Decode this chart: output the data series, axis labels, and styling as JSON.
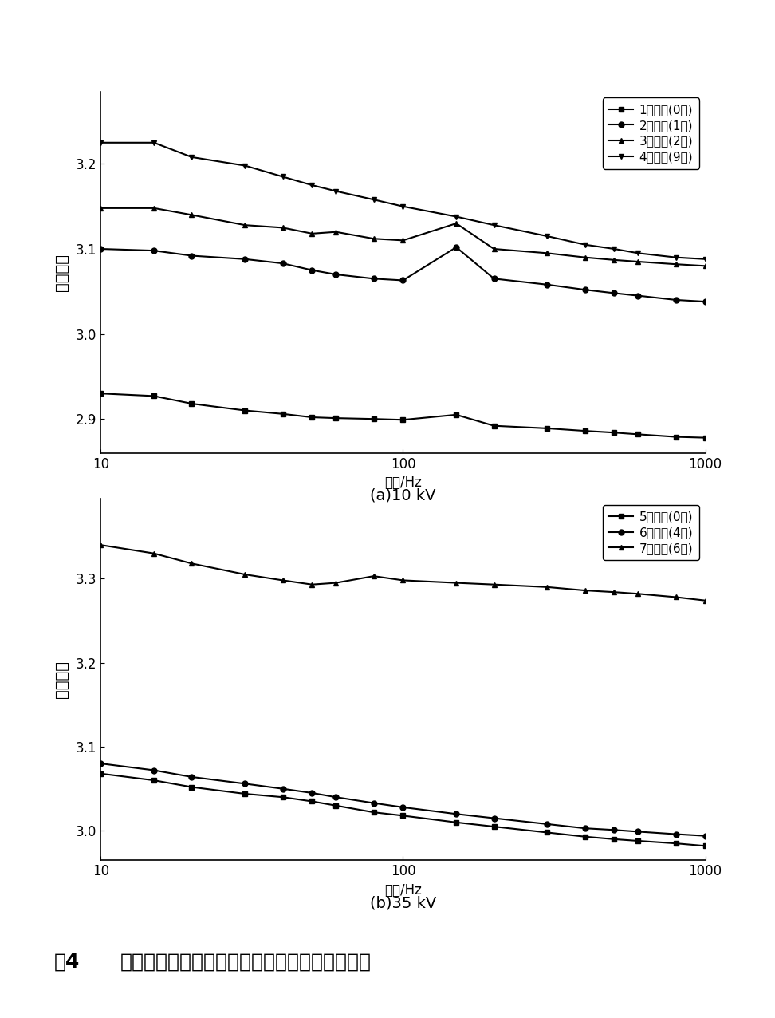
{
  "freq_points": [
    10,
    15,
    20,
    30,
    40,
    50,
    60,
    80,
    100,
    150,
    200,
    300,
    400,
    500,
    600,
    800,
    1000
  ],
  "plot_a": {
    "title": "(a)10 kV",
    "ylabel": "介电常数",
    "xlabel": "频率/Hz",
    "ylim": [
      2.86,
      3.285
    ],
    "yticks": [
      2.9,
      3.0,
      3.1,
      3.2
    ],
    "series": [
      {
        "label": "1号试样(0年)",
        "marker": "s",
        "data": [
          2.93,
          2.927,
          2.918,
          2.91,
          2.906,
          2.902,
          2.901,
          2.9,
          2.899,
          2.905,
          2.892,
          2.889,
          2.886,
          2.884,
          2.882,
          2.879,
          2.878
        ]
      },
      {
        "label": "2号试样(1年)",
        "marker": "o",
        "data": [
          3.1,
          3.098,
          3.092,
          3.088,
          3.083,
          3.075,
          3.07,
          3.065,
          3.063,
          3.102,
          3.065,
          3.058,
          3.052,
          3.048,
          3.045,
          3.04,
          3.038
        ]
      },
      {
        "label": "3号试样(2年)",
        "marker": "^",
        "data": [
          3.148,
          3.148,
          3.14,
          3.128,
          3.125,
          3.118,
          3.12,
          3.112,
          3.11,
          3.13,
          3.1,
          3.095,
          3.09,
          3.087,
          3.085,
          3.082,
          3.08
        ]
      },
      {
        "label": "4号试样(9年)",
        "marker": "v",
        "data": [
          3.225,
          3.225,
          3.208,
          3.198,
          3.185,
          3.175,
          3.168,
          3.158,
          3.15,
          3.138,
          3.128,
          3.115,
          3.105,
          3.1,
          3.095,
          3.09,
          3.088
        ]
      }
    ]
  },
  "plot_b": {
    "title": "(b)35 kV",
    "ylabel": "介电常数",
    "xlabel": "频率/Hz",
    "ylim": [
      2.965,
      3.395
    ],
    "yticks": [
      3.0,
      3.1,
      3.2,
      3.3
    ],
    "series": [
      {
        "label": "5号试样(0年)",
        "marker": "s",
        "data": [
          3.068,
          3.06,
          3.052,
          3.044,
          3.04,
          3.035,
          3.03,
          3.022,
          3.018,
          3.01,
          3.005,
          2.998,
          2.993,
          2.99,
          2.988,
          2.985,
          2.982
        ]
      },
      {
        "label": "6号试样(4年)",
        "marker": "o",
        "data": [
          3.08,
          3.072,
          3.064,
          3.056,
          3.05,
          3.045,
          3.04,
          3.033,
          3.028,
          3.02,
          3.015,
          3.008,
          3.003,
          3.001,
          2.999,
          2.996,
          2.994
        ]
      },
      {
        "label": "7号试样(6年)",
        "marker": "^",
        "data": [
          3.34,
          3.33,
          3.318,
          3.305,
          3.298,
          3.293,
          3.295,
          3.303,
          3.298,
          3.295,
          3.293,
          3.29,
          3.286,
          3.284,
          3.282,
          3.278,
          3.274
        ]
      }
    ]
  },
  "figure_caption_part1": "图4",
  "figure_caption_part2": "不同运行年限热缩套管的介电常数与频率的关系",
  "color": "black",
  "linewidth": 1.5,
  "markersize": 5
}
